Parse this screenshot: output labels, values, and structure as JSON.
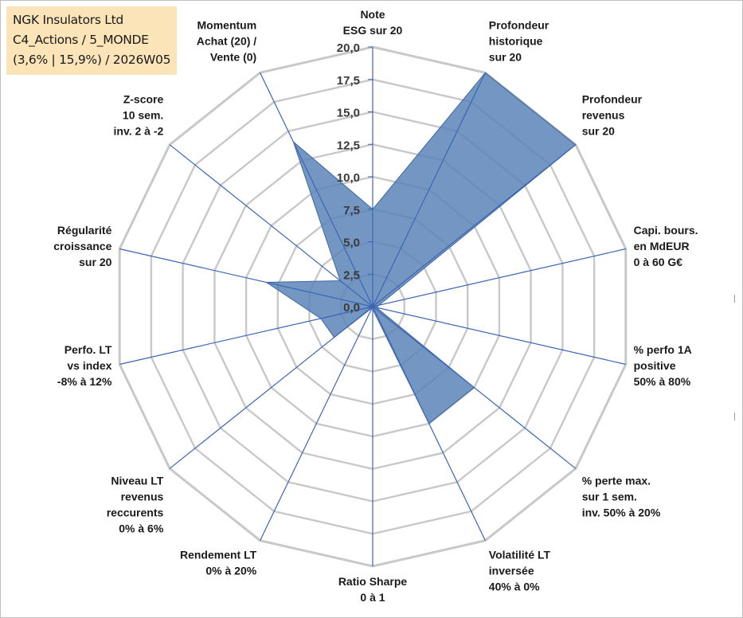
{
  "info": {
    "lines": [
      "NGK Insulators Ltd",
      "C4_Actions / 5_MONDE",
      "(3,6% | 15,9%) / 2026W05"
    ]
  },
  "colors": {
    "fill": "#5b84b8",
    "stroke": "#3f68a0",
    "spokes": "#3a66b4",
    "grid": "#c8c8c8",
    "info_bg": "#fce4b9"
  },
  "chart_data": {
    "type": "radar",
    "title": "",
    "rmin": 0,
    "rmax": 20,
    "ticks": [
      "0,0",
      "2,5",
      "5,0",
      "7,5",
      "10,0",
      "12,5",
      "15,0",
      "17,5",
      "20,0"
    ],
    "categories": [
      [
        "Note",
        "ESG sur 20"
      ],
      [
        "Profondeur",
        "historique",
        "sur 20"
      ],
      [
        "Profondeur",
        "revenus",
        "sur 20"
      ],
      [
        "Capi. bours.",
        "en MdEUR",
        "0 à 60 G€"
      ],
      [
        "% perfo 1A",
        "positive",
        "50% à 80%"
      ],
      [
        "% perte max.",
        "sur 1 sem.",
        "inv. 50% à 20%"
      ],
      [
        "Volatilité LT",
        "inversée",
        "40% à 0%"
      ],
      [
        "Ratio Sharpe",
        "0 à 1"
      ],
      [
        "Rendement LT",
        "0% à 20%"
      ],
      [
        "Niveau LT",
        "revenus",
        "reccurents",
        "0% à 6%"
      ],
      [
        "Perfo. LT",
        "vs index",
        "-8% à 12%"
      ],
      [
        "Régularité",
        "croissance",
        "sur 20"
      ],
      [
        "Z-score",
        "10 sem.",
        "inv. 2 à -2"
      ],
      [
        "Momentum",
        "Achat (20) /",
        "Vente (0)"
      ]
    ],
    "series": [
      {
        "name": "NGK Insulators Ltd",
        "values": [
          7.5,
          20,
          20,
          0.5,
          0.3,
          10,
          10,
          0.2,
          0.1,
          3.8,
          4.1,
          8.4,
          3.2,
          14.1
        ]
      }
    ]
  }
}
